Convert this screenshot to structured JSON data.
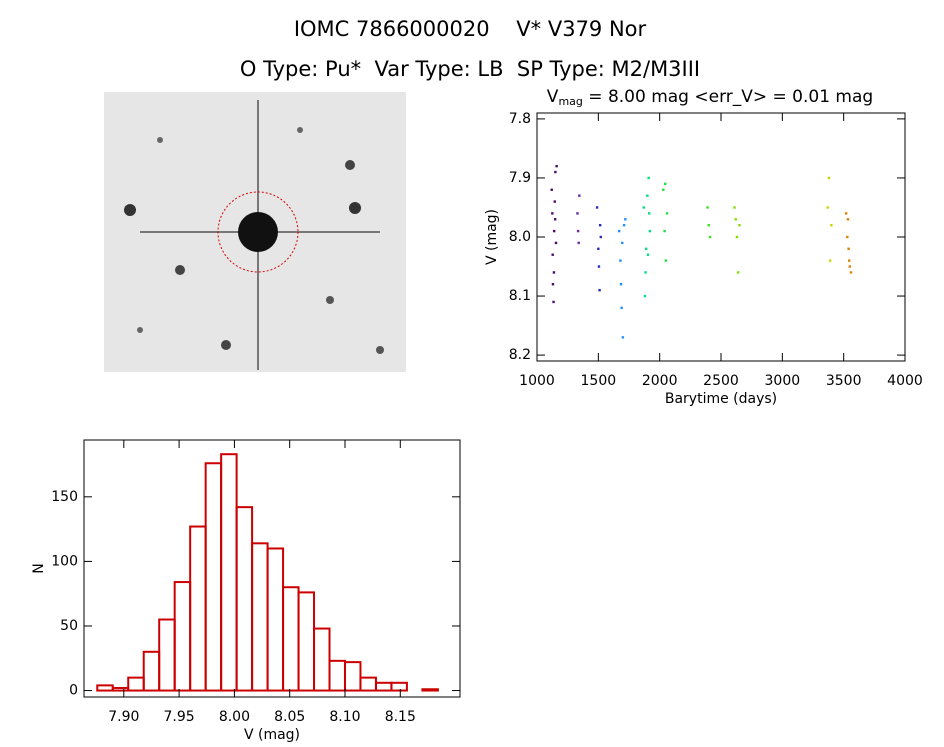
{
  "header": {
    "title": "IOMC 7866000020    V* V379 Nor",
    "subtitle": "O Type: Pu*  Var Type: LB  SP Type: M2/M3III"
  },
  "chart_data": [
    {
      "type": "scatter",
      "title": "V",
      "title_subscript": "mag",
      "title_rest": " = 8.00 mag <err_V> = 0.01 mag",
      "x_label": "Barytime (days)",
      "y_label": "V (mag)",
      "xlim": [
        1000,
        4000
      ],
      "xticks": [
        1000,
        1500,
        2000,
        2500,
        3000,
        3500,
        4000
      ],
      "ylim": [
        8.21,
        7.79
      ],
      "yticks": [
        7.8,
        7.9,
        {
          "value": 8,
          "label": "8.0"
        },
        8.1,
        8.2
      ],
      "series": [
        {
          "color": "#4b0a6e",
          "x": [
            1120,
            1125,
            1130,
            1135,
            1140,
            1145,
            1150,
            1155,
            1160,
            1128,
            1138,
            1148
          ],
          "values": [
            7.92,
            7.96,
            8.08,
            8.11,
            7.99,
            7.94,
            7.89,
            8.01,
            7.88,
            8.03,
            8.06,
            7.97
          ]
        },
        {
          "color": "#6a2aa0",
          "x": [
            1330,
            1335,
            1340,
            1345
          ],
          "values": [
            7.96,
            7.99,
            8.01,
            7.93
          ]
        },
        {
          "color": "#2a2ab8",
          "x": [
            1490,
            1500,
            1505,
            1510,
            1515,
            1520
          ],
          "values": [
            7.95,
            8.02,
            8.05,
            8.09,
            7.98,
            8.0
          ]
        },
        {
          "color": "#1e90ff",
          "x": [
            1670,
            1680,
            1690,
            1700,
            1710,
            1720,
            1685,
            1695
          ],
          "values": [
            7.99,
            8.04,
            8.12,
            8.17,
            7.98,
            7.97,
            8.08,
            8.01
          ]
        },
        {
          "color": "#00e080",
          "x": [
            1870,
            1880,
            1890,
            1900,
            1910,
            1920,
            1885,
            1905,
            1915
          ],
          "values": [
            7.95,
            8.1,
            8.02,
            7.93,
            7.9,
            7.99,
            8.06,
            8.03,
            7.96
          ]
        },
        {
          "color": "#20e040",
          "x": [
            2030,
            2040,
            2050,
            2060,
            2045
          ],
          "values": [
            7.92,
            7.99,
            8.04,
            7.96,
            7.91
          ]
        },
        {
          "color": "#40e020",
          "x": [
            2390,
            2400,
            2410
          ],
          "values": [
            7.95,
            7.98,
            8.0
          ]
        },
        {
          "color": "#80e000",
          "x": [
            2610,
            2620,
            2630,
            2640,
            2650
          ],
          "values": [
            7.95,
            7.97,
            8.0,
            8.06,
            7.98
          ]
        },
        {
          "color": "#d0d000",
          "x": [
            3370,
            3380,
            3390,
            3400
          ],
          "values": [
            7.95,
            7.9,
            8.04,
            7.98
          ]
        },
        {
          "color": "#e08000",
          "x": [
            3520,
            3530,
            3540,
            3550,
            3560,
            3535,
            3545
          ],
          "values": [
            7.96,
            8.0,
            8.02,
            8.05,
            8.06,
            7.97,
            8.04
          ]
        }
      ]
    },
    {
      "type": "histogram",
      "x_label": "V (mag)",
      "y_label": "N",
      "color": "#cc0000",
      "bins": [
        7.876,
        7.89,
        7.904,
        7.918,
        7.932,
        7.946,
        7.96,
        7.974,
        7.988,
        8.002,
        8.016,
        8.03,
        8.044,
        8.058,
        8.072,
        8.086,
        8.1,
        8.114,
        8.128,
        8.142,
        8.156,
        8.17,
        8.184
      ],
      "values": [
        4,
        2,
        10,
        30,
        55,
        84,
        127,
        176,
        183,
        142,
        114,
        110,
        80,
        76,
        48,
        23,
        22,
        10,
        6,
        6,
        0,
        1
      ],
      "xlim": [
        7.864,
        8.204
      ],
      "xticks": [
        {
          "value": 7.9,
          "label": "7.90"
        },
        7.95,
        {
          "value": 8,
          "label": "8.00"
        },
        8.05,
        {
          "value": 8.1,
          "label": "8.10"
        },
        8.15
      ],
      "ylim": [
        -5,
        194
      ],
      "yticks": [
        0,
        50,
        100,
        150
      ]
    }
  ]
}
